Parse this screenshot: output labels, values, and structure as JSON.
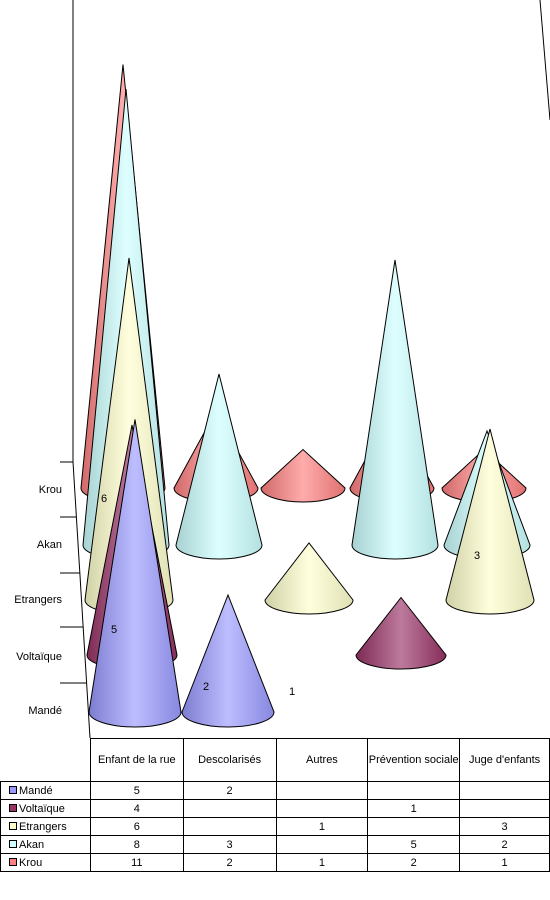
{
  "chart_data": {
    "type": "bar",
    "shape": "3d-cone",
    "categories": [
      "Enfant de la rue",
      "Descolarisés",
      "Autres",
      "Prévention sociale",
      "Juge d'enfants"
    ],
    "series": [
      {
        "name": "Mandé",
        "color": "#9999ff",
        "values": [
          5,
          2,
          null,
          null,
          null
        ]
      },
      {
        "name": "Voltaïque",
        "color": "#993366",
        "values": [
          4,
          null,
          null,
          1,
          null
        ]
      },
      {
        "name": "Etrangers",
        "color": "#ffffcc",
        "values": [
          6,
          null,
          1,
          null,
          3
        ]
      },
      {
        "name": "Akan",
        "color": "#ccffff",
        "values": [
          8,
          3,
          null,
          5,
          2
        ]
      },
      {
        "name": "Krou",
        "color": "#ff8080",
        "values": [
          11,
          2,
          1,
          2,
          1
        ]
      }
    ],
    "data_labels": [
      {
        "series": "Mandé",
        "category": "Enfant de la rue",
        "text": "5"
      },
      {
        "series": "Mandé",
        "category": "Descolarisés",
        "text": "2"
      },
      {
        "series": "Voltaïque",
        "category": "Prévention sociale",
        "text": "1"
      },
      {
        "series": "Etrangers",
        "category": "Enfant de la rue",
        "text": "6"
      },
      {
        "series": "Etrangers",
        "category": "Juge d'enfants",
        "text": "3"
      }
    ],
    "legend": "data-table",
    "grid": false
  }
}
